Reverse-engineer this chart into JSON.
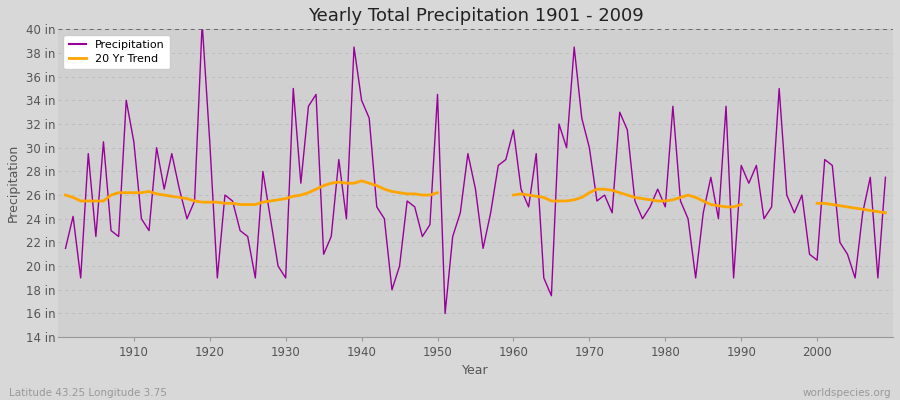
{
  "title": "Yearly Total Precipitation 1901 - 2009",
  "xlabel": "Year",
  "ylabel": "Precipitation",
  "subtitle_left": "Latitude 43.25 Longitude 3.75",
  "subtitle_right": "worldspecies.org",
  "legend_entries": [
    "Precipitation",
    "20 Yr Trend"
  ],
  "precip_color": "#990099",
  "trend_color": "#FFA500",
  "fig_bg_color": "#D8D8D8",
  "plot_bg_color": "#D0D0D0",
  "ylim": [
    14,
    40
  ],
  "ytick_step": 2,
  "years": [
    1901,
    1902,
    1903,
    1904,
    1905,
    1906,
    1907,
    1908,
    1909,
    1910,
    1911,
    1912,
    1913,
    1914,
    1915,
    1916,
    1917,
    1918,
    1919,
    1920,
    1921,
    1922,
    1923,
    1924,
    1925,
    1926,
    1927,
    1928,
    1929,
    1930,
    1931,
    1932,
    1933,
    1934,
    1935,
    1936,
    1937,
    1938,
    1939,
    1940,
    1941,
    1942,
    1943,
    1944,
    1945,
    1946,
    1947,
    1948,
    1949,
    1950,
    1951,
    1952,
    1953,
    1954,
    1955,
    1956,
    1957,
    1958,
    1959,
    1960,
    1961,
    1962,
    1963,
    1964,
    1965,
    1966,
    1967,
    1968,
    1969,
    1970,
    1971,
    1972,
    1973,
    1974,
    1975,
    1976,
    1977,
    1978,
    1979,
    1980,
    1981,
    1982,
    1983,
    1984,
    1985,
    1986,
    1987,
    1988,
    1989,
    1990,
    1991,
    1992,
    1993,
    1994,
    1995,
    1996,
    1997,
    1998,
    1999,
    2000,
    2001,
    2002,
    2003,
    2004,
    2005,
    2006,
    2007,
    2008,
    2009
  ],
  "precip": [
    21.5,
    24.2,
    19.0,
    29.5,
    22.5,
    30.5,
    23.0,
    22.5,
    34.0,
    30.5,
    24.0,
    23.0,
    30.0,
    26.5,
    29.5,
    26.5,
    24.0,
    25.5,
    40.5,
    30.5,
    19.0,
    26.0,
    25.5,
    23.0,
    22.5,
    19.0,
    28.0,
    24.0,
    20.0,
    19.0,
    35.0,
    27.0,
    33.5,
    34.5,
    21.0,
    22.5,
    29.0,
    24.0,
    38.5,
    34.0,
    32.5,
    25.0,
    24.0,
    18.0,
    20.0,
    25.5,
    25.0,
    22.5,
    23.5,
    34.5,
    16.0,
    22.5,
    24.5,
    29.5,
    26.5,
    21.5,
    24.5,
    28.5,
    29.0,
    31.5,
    26.5,
    25.0,
    29.5,
    19.0,
    17.5,
    32.0,
    30.0,
    38.5,
    32.5,
    30.0,
    25.5,
    26.0,
    24.5,
    33.0,
    31.5,
    25.5,
    24.0,
    25.0,
    26.5,
    25.0,
    33.5,
    25.5,
    24.0,
    19.0,
    24.5,
    27.5,
    24.0,
    33.5,
    19.0,
    28.5,
    27.0,
    28.5,
    24.0,
    25.0,
    35.0,
    26.0,
    24.5,
    26.0,
    21.0,
    20.5,
    29.0,
    28.5,
    22.0,
    21.0,
    19.0,
    24.5,
    27.5,
    19.0,
    27.5
  ],
  "trend_segments": [
    {
      "years": [
        1901,
        1902,
        1903,
        1904,
        1905,
        1906,
        1907,
        1908,
        1909,
        1910,
        1911,
        1912,
        1913,
        1914,
        1915,
        1916,
        1917,
        1918,
        1919,
        1920,
        1921,
        1922,
        1923,
        1924,
        1925,
        1926,
        1927,
        1928,
        1929,
        1930,
        1931,
        1932,
        1933,
        1934,
        1935,
        1936,
        1937,
        1938,
        1939,
        1940,
        1941,
        1942,
        1943,
        1944,
        1945,
        1946,
        1947,
        1948,
        1949,
        1950
      ],
      "values": [
        26.0,
        25.8,
        25.5,
        25.5,
        25.5,
        25.5,
        26.0,
        26.2,
        26.2,
        26.2,
        26.2,
        26.3,
        26.1,
        26.0,
        25.9,
        25.8,
        25.7,
        25.5,
        25.4,
        25.4,
        25.4,
        25.3,
        25.3,
        25.2,
        25.2,
        25.2,
        25.4,
        25.5,
        25.6,
        25.7,
        25.9,
        26.0,
        26.2,
        26.5,
        26.8,
        27.0,
        27.1,
        27.0,
        27.0,
        27.2,
        27.0,
        26.8,
        26.5,
        26.3,
        26.2,
        26.1,
        26.1,
        26.0,
        26.0,
        26.2
      ]
    },
    {
      "years": [
        1960,
        1961,
        1962,
        1963,
        1964,
        1965,
        1966,
        1967,
        1968,
        1969,
        1970,
        1971,
        1972,
        1973,
        1974,
        1975,
        1976,
        1977,
        1978,
        1979,
        1980,
        1981,
        1982,
        1983,
        1984,
        1985,
        1986,
        1987,
        1988,
        1989,
        1990
      ],
      "values": [
        26.0,
        26.1,
        26.0,
        25.9,
        25.8,
        25.5,
        25.5,
        25.5,
        25.6,
        25.8,
        26.2,
        26.5,
        26.5,
        26.4,
        26.2,
        26.0,
        25.8,
        25.7,
        25.6,
        25.5,
        25.5,
        25.6,
        25.8,
        26.0,
        25.8,
        25.5,
        25.2,
        25.1,
        25.0,
        25.0,
        25.2
      ]
    },
    {
      "years": [
        2000,
        2001,
        2002,
        2003,
        2004,
        2005,
        2006,
        2007,
        2008,
        2009
      ],
      "values": [
        25.3,
        25.3,
        25.2,
        25.1,
        25.0,
        24.9,
        24.8,
        24.7,
        24.6,
        24.5
      ]
    }
  ]
}
